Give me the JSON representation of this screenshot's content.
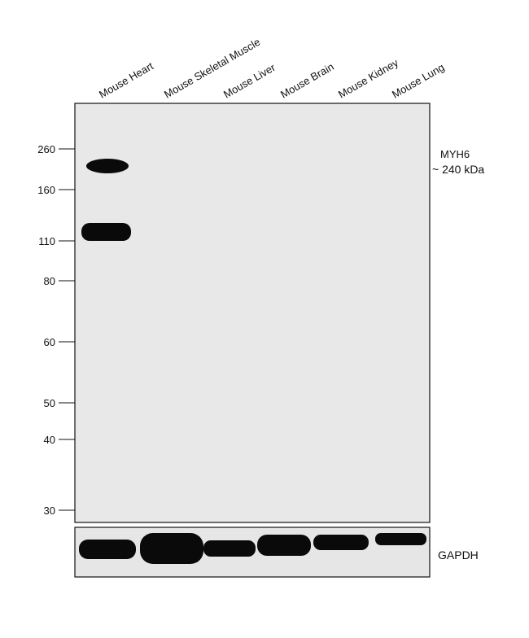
{
  "lanes": [
    "Mouse Heart",
    "Mouse Skeletal Muscle",
    "Mouse Liver",
    "Mouse Brain",
    "Mouse Kidney",
    "Mouse Lung"
  ],
  "markers": [
    260,
    160,
    110,
    80,
    60,
    50,
    40,
    30
  ],
  "target": {
    "name": "MYH6",
    "size": "~ 240 kDa"
  },
  "loading_control": "GAPDH"
}
